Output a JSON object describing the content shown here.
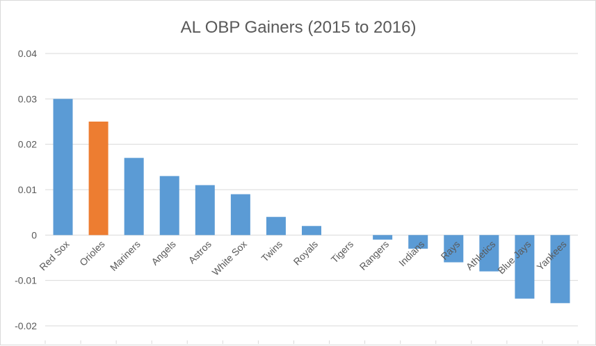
{
  "chart_data": {
    "type": "bar",
    "title": "AL OBP Gainers (2015 to 2016)",
    "xlabel": "",
    "ylabel": "",
    "ylim": [
      -0.02,
      0.04
    ],
    "yticks": [
      "0.04",
      "0.03",
      "0.02",
      "0.01",
      "0",
      "-0.01",
      "-0.02"
    ],
    "ytick_values": [
      0.04,
      0.03,
      0.02,
      0.01,
      0,
      -0.01,
      -0.02
    ],
    "grid": true,
    "legend": "none",
    "categories": [
      "Red Sox",
      "Orioles",
      "Mariners",
      "Angels",
      "Astros",
      "White Sox",
      "Twins",
      "Royals",
      "Tigers",
      "Rangers",
      "Indians",
      "Rays",
      "Athletics",
      "Blue Jays",
      "Yankees"
    ],
    "values": [
      0.03,
      0.025,
      0.017,
      0.013,
      0.011,
      0.009,
      0.004,
      0.002,
      0.0,
      -0.001,
      -0.003,
      -0.006,
      -0.008,
      -0.014,
      -0.015
    ],
    "colors": {
      "default_bar": "#5b9bd5",
      "highlight_bar": "#ed7d31",
      "gridline": "#d9d9d9",
      "text": "#595959"
    },
    "highlight_category": "Orioles"
  }
}
